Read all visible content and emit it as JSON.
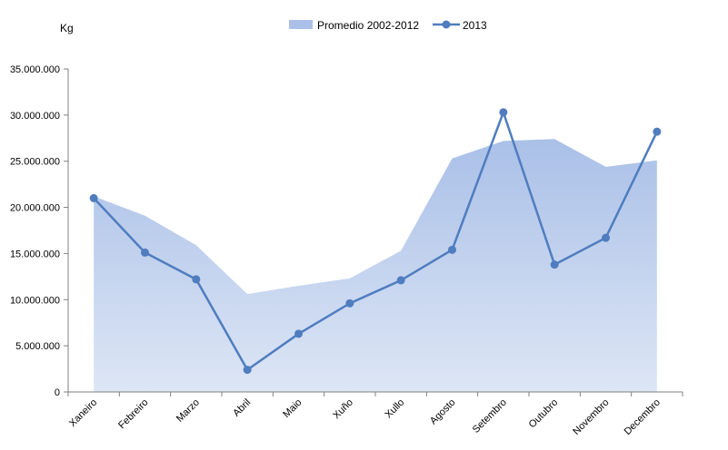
{
  "chart_data": {
    "type": "area+line",
    "unit_label": "Kg",
    "categories": [
      "Xaneiro",
      "Febreiro",
      "Marzo",
      "Abril",
      "Maio",
      "Xuño",
      "Xullo",
      "Agosto",
      "Setembro",
      "Outubro",
      "Novembro",
      "Decembro"
    ],
    "y_ticks": [
      "0",
      "5.000.000",
      "10.000.000",
      "15.000.000",
      "20.000.000",
      "25.000.000",
      "30.000.000",
      "35.000.000"
    ],
    "ylim": [
      0,
      35000000
    ],
    "grid": false,
    "legend_position": "top-center",
    "series": [
      {
        "name": "Promedio 2002-2012",
        "type": "area",
        "color": "#aac0e8",
        "values": [
          21200000,
          19100000,
          15900000,
          10600000,
          11500000,
          12300000,
          15300000,
          25300000,
          27200000,
          27400000,
          24400000,
          25100000
        ]
      },
      {
        "name": "2013",
        "type": "line",
        "color": "#4f7dbf",
        "values": [
          21000000,
          15100000,
          12200000,
          2400000,
          6300000,
          9600000,
          12100000,
          15400000,
          30300000,
          13800000,
          16700000,
          28200000
        ]
      }
    ]
  }
}
